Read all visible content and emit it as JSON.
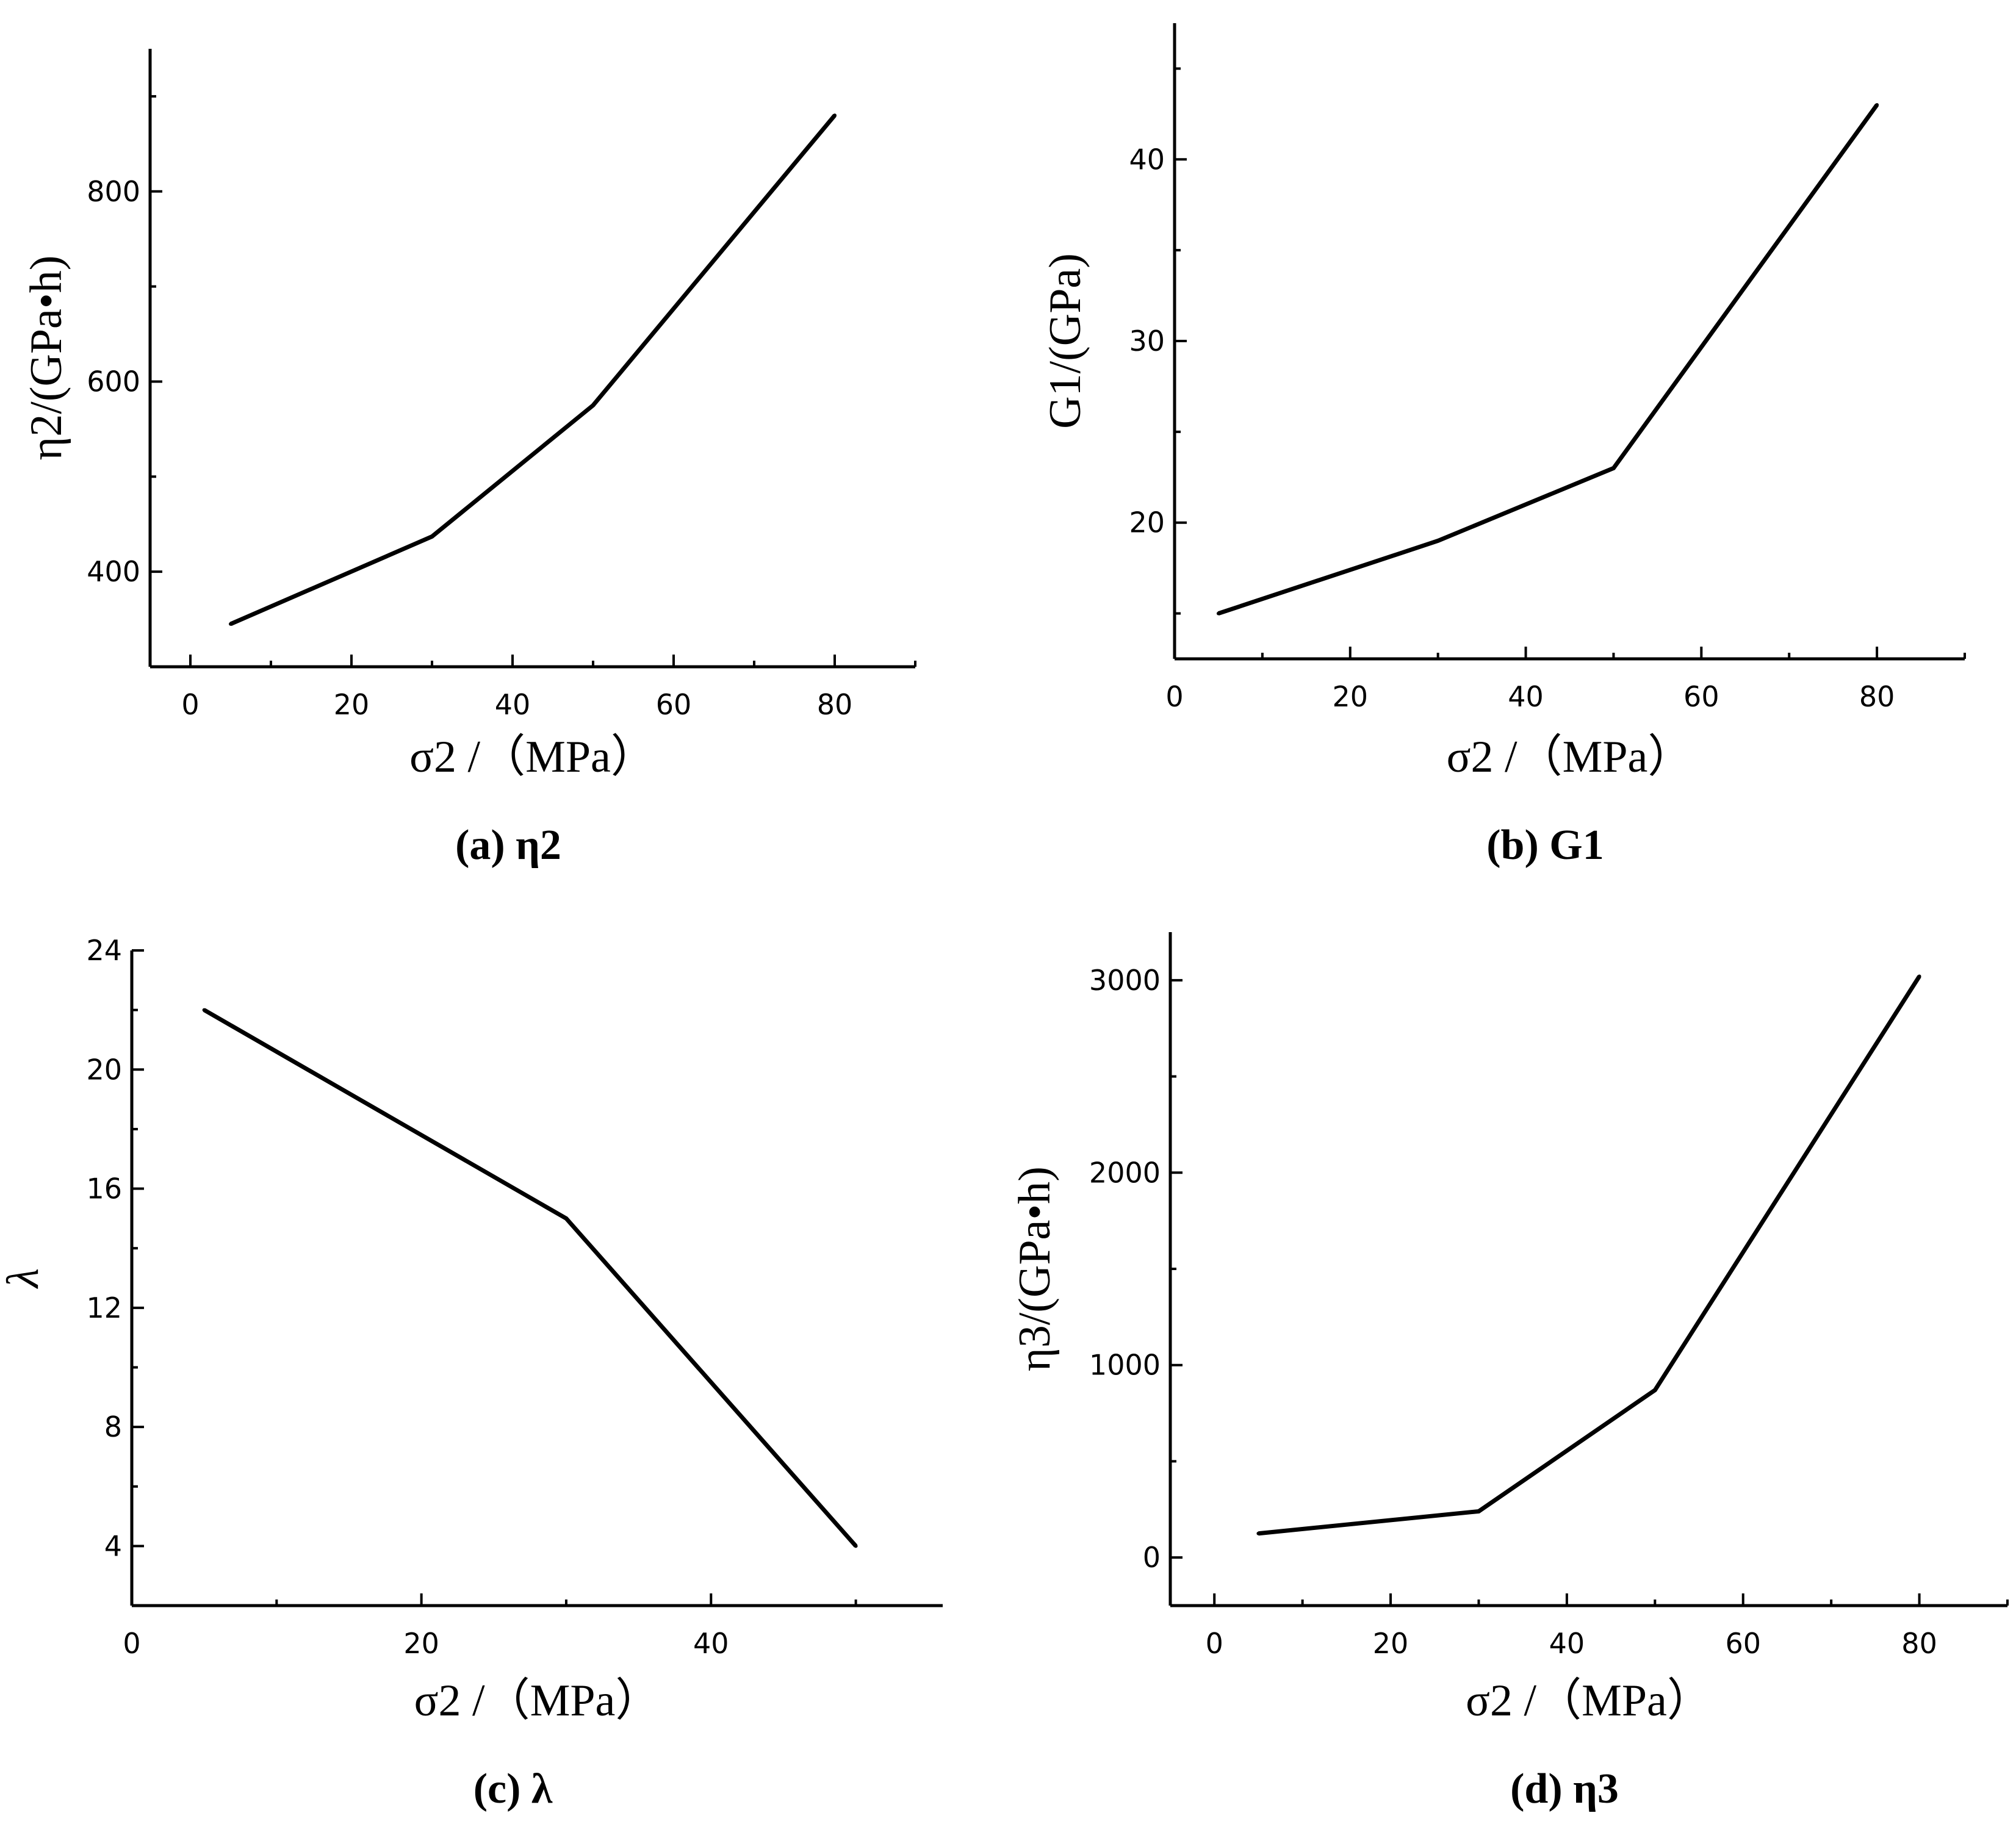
{
  "chart_data": [
    {
      "panel": "a",
      "type": "line",
      "caption": "(a) η2",
      "xlabel": "σ2 /（MPa）",
      "ylabel": "η2/(GPa•h)",
      "x": [
        5,
        30,
        50,
        80
      ],
      "y": [
        345,
        437,
        575,
        880
      ],
      "xlim": [
        -5,
        90
      ],
      "ylim": [
        300,
        950
      ],
      "xticks": [
        0,
        20,
        40,
        60,
        80
      ],
      "yticks": [
        400,
        600,
        800
      ],
      "x_minor_step": 10,
      "y_minor_step": 100
    },
    {
      "panel": "b",
      "type": "line",
      "caption": "(b) G1",
      "xlabel": "σ2 /（MPa）",
      "ylabel": "G1/(GPa)",
      "x": [
        5,
        30,
        50,
        80
      ],
      "y": [
        15,
        19,
        23,
        43
      ],
      "xlim": [
        0,
        90
      ],
      "ylim": [
        12.5,
        47.5
      ],
      "xticks": [
        0,
        20,
        40,
        60,
        80
      ],
      "yticks": [
        20,
        30,
        40
      ],
      "x_minor_step": 10,
      "y_minor_step": 5
    },
    {
      "panel": "c",
      "type": "line",
      "caption": "(c) λ",
      "xlabel": "σ2 /（MPa）",
      "ylabel": "λ",
      "x": [
        5,
        30,
        50
      ],
      "y": [
        22,
        15,
        4
      ],
      "xlim": [
        0,
        56
      ],
      "ylim": [
        2,
        24
      ],
      "xticks": [
        0,
        20,
        40
      ],
      "yticks": [
        4,
        8,
        12,
        16,
        20,
        24
      ],
      "x_minor_step": 10,
      "y_minor_step": 2
    },
    {
      "panel": "d",
      "type": "line",
      "caption": "(d) η3",
      "xlabel": "σ2 /（MPa）",
      "ylabel": "η3/(GPa•h)",
      "x": [
        5,
        30,
        50,
        80
      ],
      "y": [
        125,
        240,
        870,
        3020
      ],
      "xlim": [
        -5,
        90
      ],
      "ylim": [
        -250,
        3250
      ],
      "xticks": [
        0,
        20,
        40,
        60,
        80
      ],
      "yticks": [
        0,
        1000,
        2000,
        3000
      ],
      "x_minor_step": 10,
      "y_minor_step": 500
    }
  ]
}
